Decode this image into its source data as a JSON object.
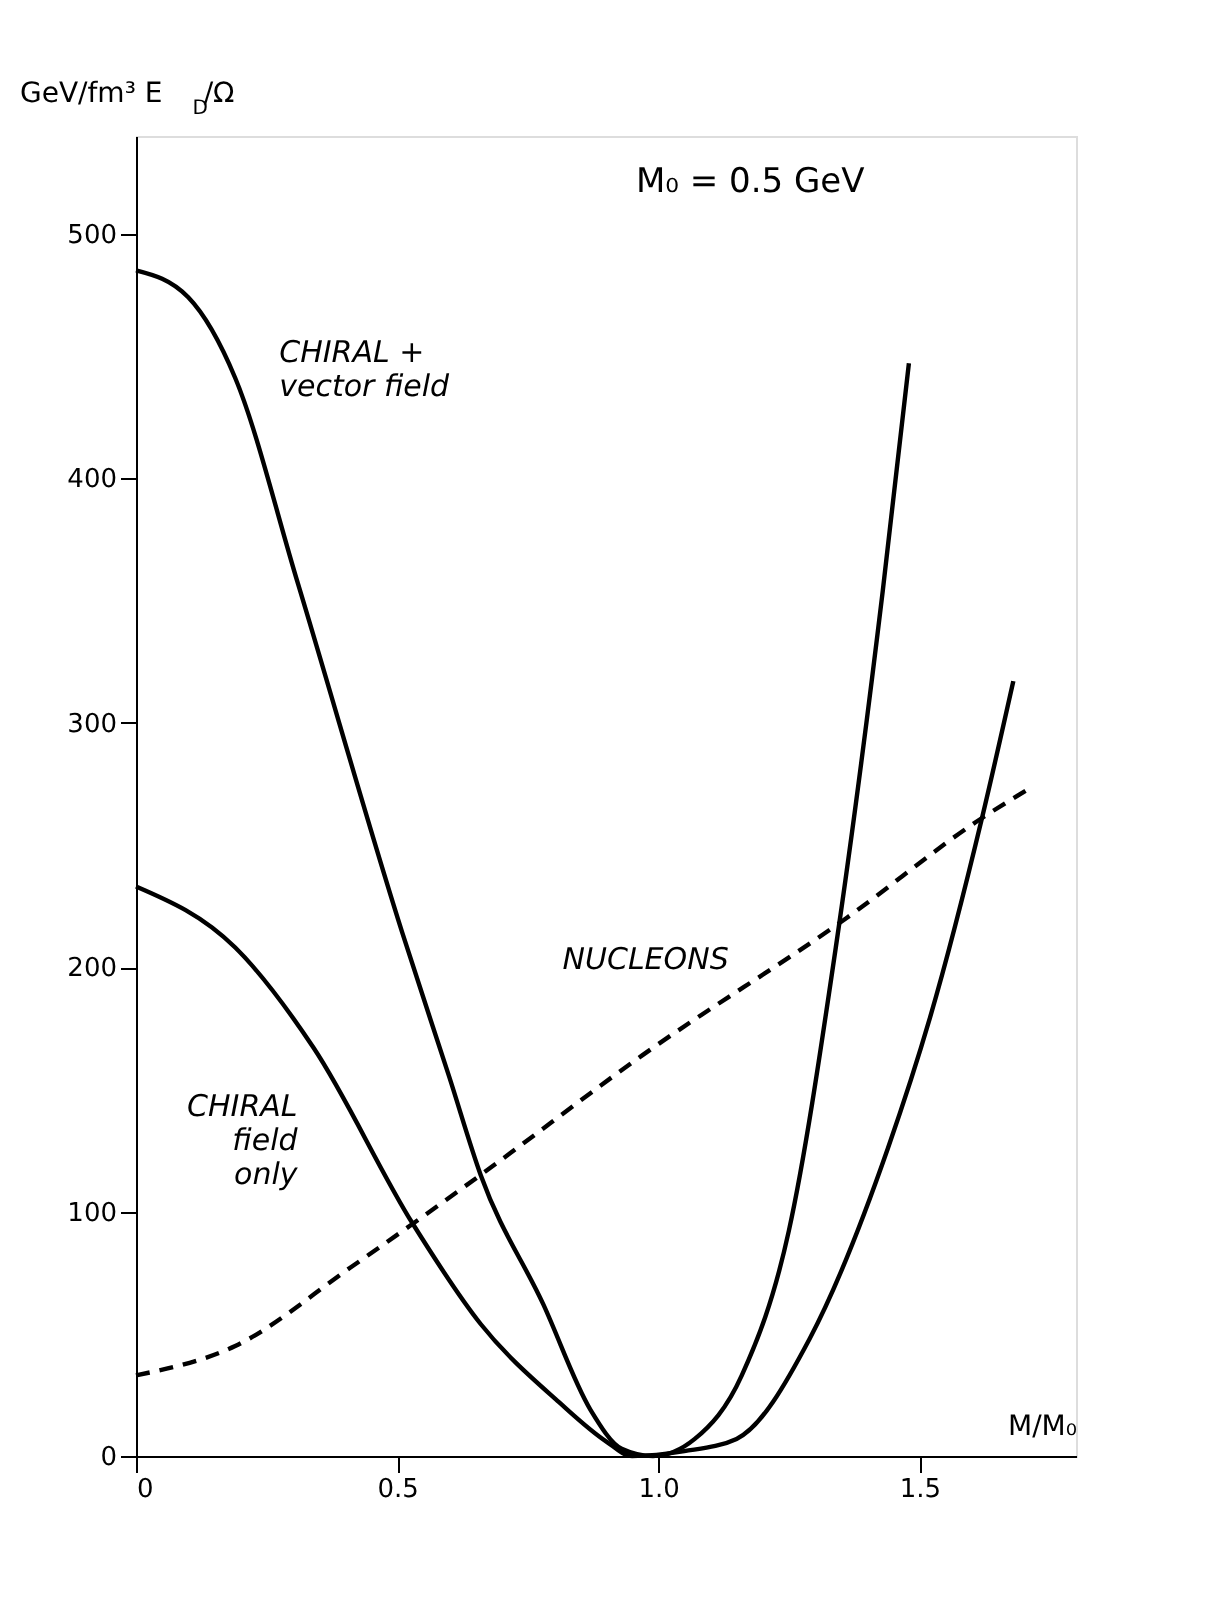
{
  "chart_data": {
    "type": "line",
    "xlabel": "M/M₀",
    "ylabel": "GeV/fm³   E$_{D}$/Ω",
    "xlim": [
      0,
      1.8
    ],
    "xticks": [
      0,
      0.5,
      {
        "value": 1,
        "label": "1.0"
      },
      1.5
    ],
    "ylim": [
      0,
      540
    ],
    "yticks": [
      0,
      100,
      200,
      300,
      400,
      500
    ],
    "grid": false,
    "marker": "none",
    "series": [
      {
        "name": "CHIRAL +\nvector field",
        "color": "#000000",
        "line_style": "solid",
        "x": [
          0,
          0.1,
          0.19,
          0.31,
          0.51,
          0.6,
          0.66,
          0.78,
          0.87,
          0.93,
          0.99,
          1.07,
          1.16,
          1.25,
          1.34,
          1.43,
          1.48
        ],
        "values": [
          485,
          474,
          441,
          357,
          214,
          155,
          115,
          62,
          19,
          3,
          0,
          7,
          33,
          92,
          208,
          354,
          447
        ]
      },
      {
        "name": "CHIRAL\nfield\nonly",
        "color": "#000000",
        "line_style": "solid",
        "x": [
          0,
          0.19,
          0.34,
          0.53,
          0.66,
          0.81,
          0.9,
          0.95,
          1.05,
          1.15,
          1.29,
          1.44,
          1.52,
          1.62,
          1.68
        ],
        "values": [
          233,
          208,
          167,
          95,
          54,
          22,
          6,
          0,
          2,
          7,
          48,
          126,
          179,
          261,
          317
        ]
      },
      {
        "name": "NUCLEONS",
        "color": "#000000",
        "line_style": "dashed",
        "x": [
          0,
          0.19,
          0.41,
          0.53,
          0.66,
          0.97,
          1.36,
          1.62,
          1.71
        ],
        "values": [
          33,
          45,
          77,
          95,
          115,
          164,
          220,
          261,
          273
        ]
      }
    ],
    "annotations": [
      "M₀ = 0.5 GeV"
    ]
  }
}
